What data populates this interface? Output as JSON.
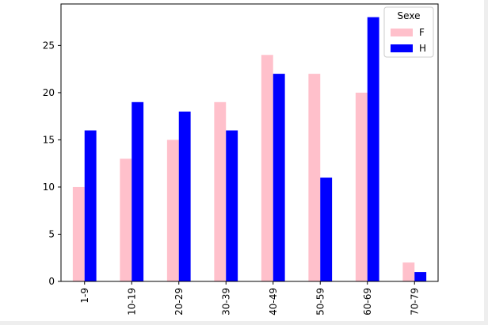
{
  "chart_data": {
    "type": "bar",
    "title": "",
    "xlabel": "",
    "ylabel": "",
    "categories": [
      "1-9",
      "10-19",
      "20-29",
      "30-39",
      "40-49",
      "50-59",
      "60-69",
      "70-79"
    ],
    "series": [
      {
        "name": "F",
        "color": "#ffc0cb",
        "values": [
          10,
          13,
          15,
          19,
          24,
          22,
          20,
          2
        ]
      },
      {
        "name": "H",
        "color": "#0000ff",
        "values": [
          16,
          19,
          18,
          16,
          22,
          11,
          28,
          1
        ]
      }
    ],
    "ylim": [
      0,
      29.4
    ],
    "yticks": [
      0,
      5,
      10,
      15,
      20,
      25
    ],
    "legend": {
      "title": "Sexe",
      "location": "upper right"
    },
    "grid": false
  }
}
